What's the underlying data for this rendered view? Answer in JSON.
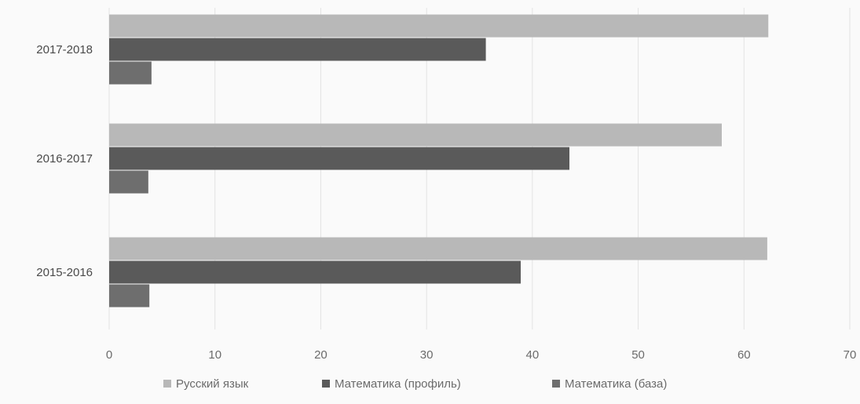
{
  "chart_data": {
    "type": "bar",
    "orientation": "horizontal",
    "categories": [
      "2015-2016",
      "2016-2017",
      "2017-2018"
    ],
    "series": [
      {
        "name": "Русский язык",
        "values": [
          62.2,
          57.9,
          62.3
        ],
        "color": "#b8b8b8"
      },
      {
        "name": "Математика (профиль)",
        "values": [
          38.9,
          43.5,
          35.6
        ],
        "color": "#5a5a5a"
      },
      {
        "name": "Математика (база)",
        "values": [
          3.8,
          3.7,
          4.0
        ],
        "color": "#6e6e6e"
      }
    ],
    "x_ticks": [
      0,
      10,
      20,
      30,
      40,
      50,
      60,
      70
    ],
    "xlim": [
      0,
      70
    ],
    "grid": "vertical",
    "legend_position": "bottom",
    "title": "",
    "xlabel": "",
    "ylabel": ""
  }
}
